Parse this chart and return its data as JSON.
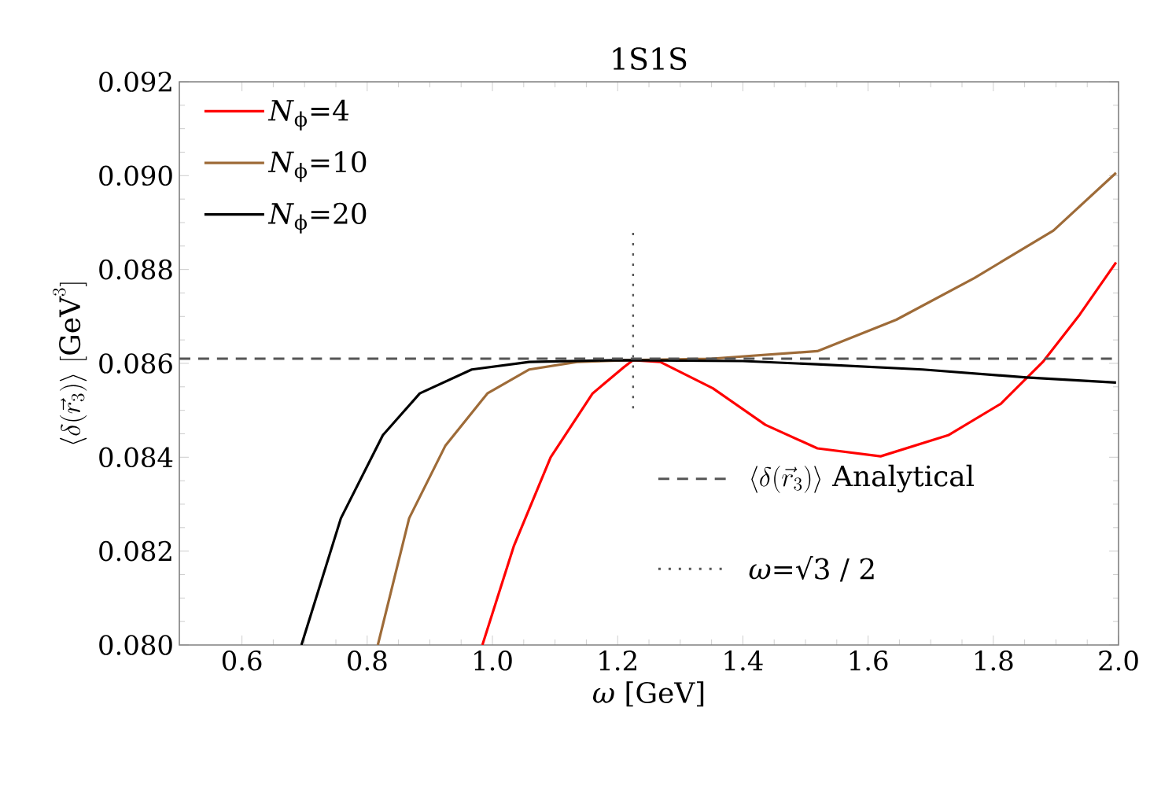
{
  "chart_data": {
    "type": "line",
    "title": "1S1S",
    "xlabel": "*ω* [GeV]",
    "ylabel": "\\langle\\delta(\\vec{r}_3)\\rangle\\ [\\mathrm{GeV}^3]",
    "xlim": [
      0.5,
      2.0
    ],
    "xticks": [
      0.6,
      0.8,
      {
        "value": 1,
        "label": "1.0"
      },
      1.2,
      1.4,
      1.6,
      1.8,
      {
        "value": 2,
        "label": "2.0"
      }
    ],
    "ylim": [
      0.08,
      0.092
    ],
    "yticks": [
      {
        "value": 0.08,
        "label": "0.080"
      },
      0.082,
      0.084,
      0.086,
      0.088,
      {
        "value": 0.09,
        "label": "0.090"
      },
      0.092
    ],
    "legend": "top left",
    "marker": "none",
    "line_style": "solid",
    "grid": false,
    "series": [
      {
        "name": "*N*$_{ϕ}$=4",
        "color": "#ff0000",
        "x": [
          0.984,
          1.034,
          1.093,
          1.16,
          1.21,
          1.2247,
          1.268,
          1.352,
          1.436,
          1.519,
          1.62,
          1.728,
          1.812,
          1.879,
          1.938,
          1.996
        ],
        "values": [
          0.08,
          0.0821,
          0.084,
          0.08536,
          0.08592,
          0.08607,
          0.08603,
          0.08547,
          0.08469,
          0.08419,
          0.08402,
          0.08447,
          0.08514,
          0.08603,
          0.08704,
          0.08815
        ]
      },
      {
        "name": "*N*$_{ϕ}$=10",
        "color": "#9e6b38",
        "x": [
          0.817,
          0.867,
          0.925,
          0.992,
          1.059,
          1.135,
          1.22,
          1.35,
          1.519,
          1.645,
          1.77,
          1.896,
          1.996
        ],
        "values": [
          0.08,
          0.0827,
          0.08425,
          0.08536,
          0.08587,
          0.08603,
          0.08607,
          0.0861,
          0.08626,
          0.08693,
          0.08782,
          0.08883,
          0.09006
        ]
      },
      {
        "name": "*N*$_{ϕ}$=20",
        "color": "#000000",
        "x": [
          0.695,
          0.758,
          0.825,
          0.884,
          0.967,
          1.059,
          1.2,
          1.4,
          1.519,
          1.687,
          1.853,
          1.996
        ],
        "values": [
          0.08,
          0.0827,
          0.08447,
          0.08536,
          0.08587,
          0.08603,
          0.08607,
          0.08605,
          0.08598,
          0.08587,
          0.0857,
          0.08559
        ]
      }
    ],
    "ref_lines": [
      {
        "axis": "y",
        "value": 0.0861,
        "label": "\\langle\\delta(\\vec{r}_3)\\rangle\\ \\mathrm{Analytical}",
        "color": "#555555",
        "line_style": "dashed"
      },
      {
        "axis": "x",
        "value": 1.2247,
        "label": "*ω*=√3 / 2",
        "color": "#555555",
        "line_style": "dotted"
      }
    ]
  }
}
